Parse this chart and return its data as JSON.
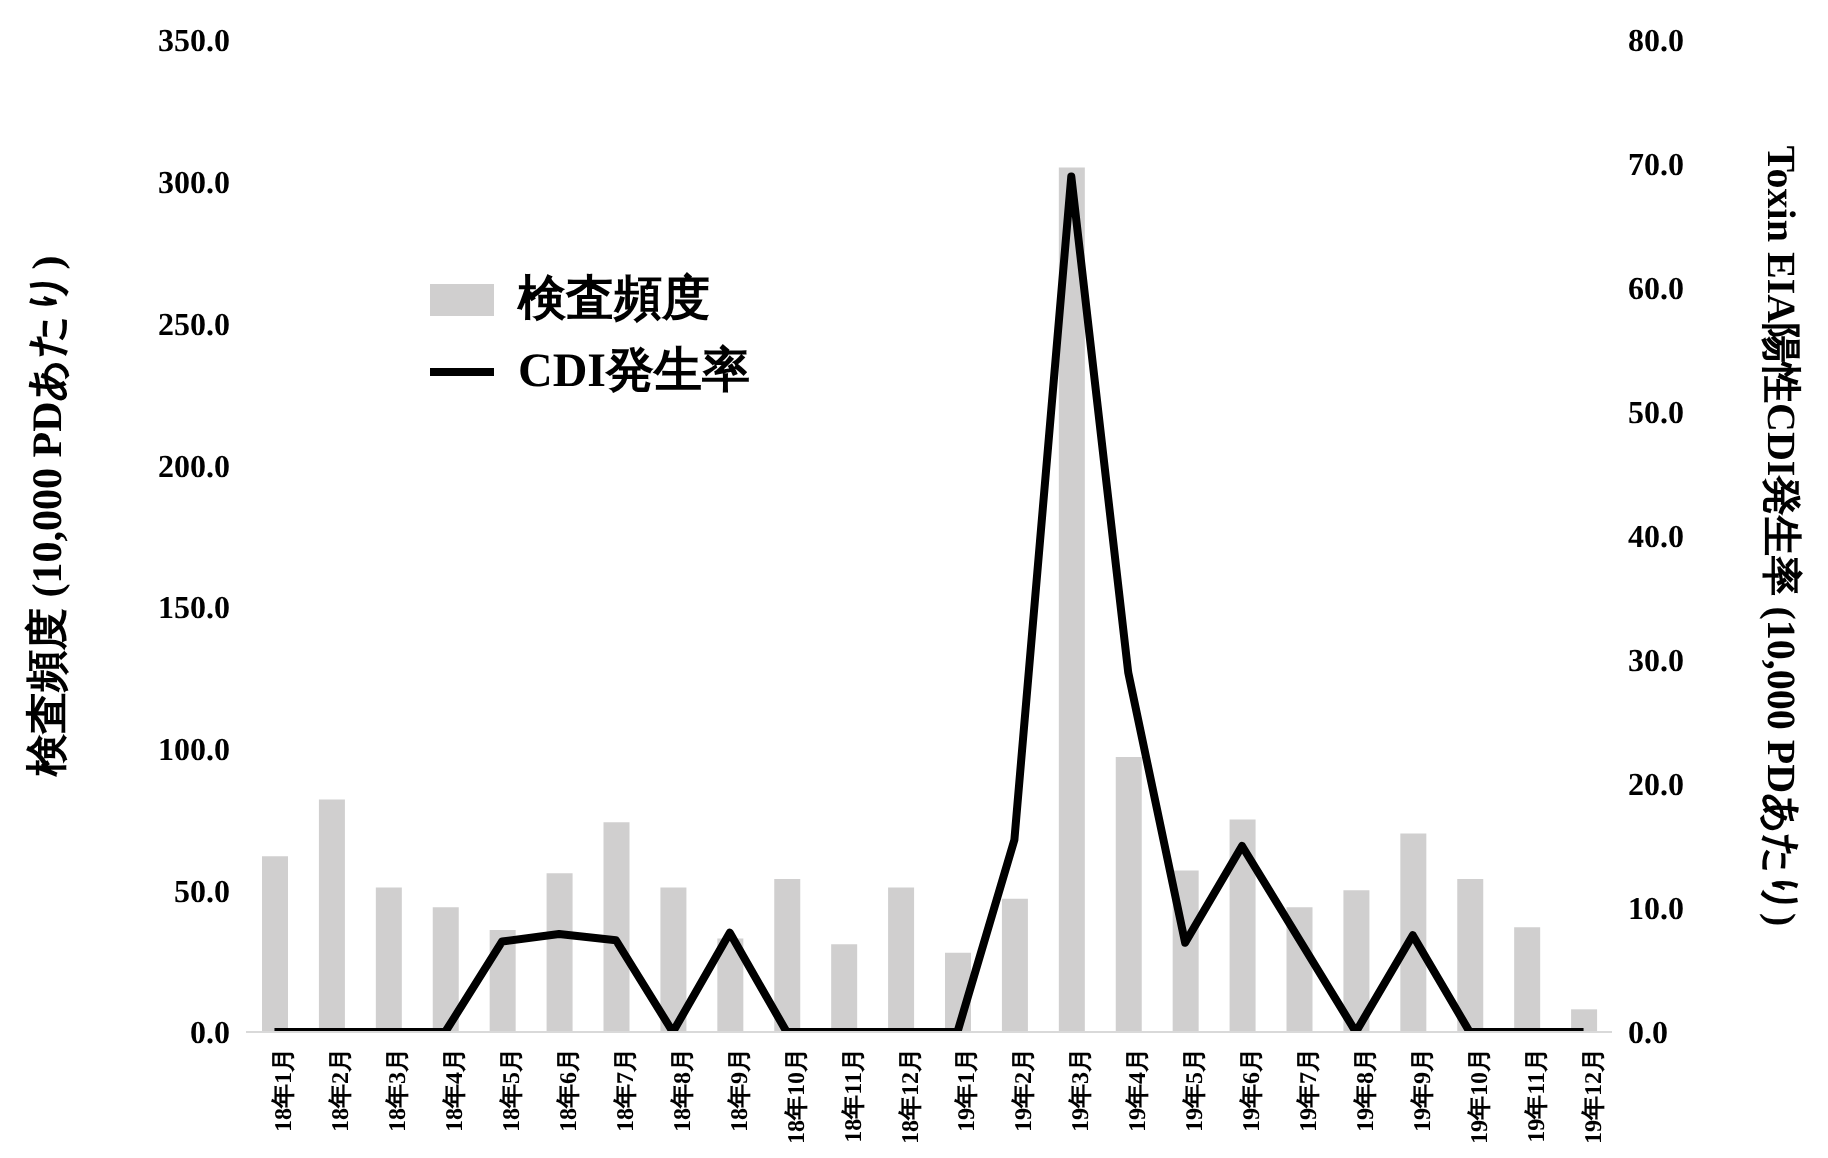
{
  "chart_data": {
    "type": "bar",
    "ylabel": "検査頻度 (10,000 PDあたり)",
    "y2label": "Toxin EIA陽性CDI発生率 (10,000 PDあたり)",
    "categories": [
      "18年1月",
      "18年2月",
      "18年3月",
      "18年4月",
      "18年5月",
      "18年6月",
      "18年7月",
      "18年8月",
      "18年9月",
      "18年10月",
      "18年11月",
      "18年12月",
      "19年1月",
      "19年2月",
      "19年3月",
      "19年4月",
      "19年5月",
      "19年6月",
      "19年7月",
      "19年8月",
      "19年9月",
      "19年10月",
      "19年11月",
      "19年12月"
    ],
    "series": [
      {
        "name": "検査頻度",
        "color": "#d0cfcf",
        "values": [
          62,
          82,
          51,
          44,
          36,
          56,
          74,
          51,
          33,
          54,
          31,
          51,
          28,
          47,
          305,
          97,
          57,
          75,
          44,
          50,
          70,
          54,
          37,
          8
        ]
      },
      {
        "name": "CDI発生率",
        "type": "line",
        "axis": "y2",
        "color": "#000000",
        "values": [
          0,
          0,
          0,
          0,
          7.3,
          7.9,
          7.4,
          0,
          8.0,
          0,
          0,
          0,
          0,
          15.5,
          69,
          29,
          7.2,
          15,
          7.5,
          0,
          7.8,
          0,
          0,
          0
        ]
      }
    ],
    "ylim": [
      0,
      350
    ],
    "yticks": [
      {
        "value": 0,
        "label": "0.0"
      },
      {
        "value": 50,
        "label": "50.0"
      },
      {
        "value": 100,
        "label": "100.0"
      },
      {
        "value": 150,
        "label": "150.0"
      },
      {
        "value": 200,
        "label": "200.0"
      },
      {
        "value": 250,
        "label": "250.0"
      },
      {
        "value": 300,
        "label": "300.0"
      },
      {
        "value": 350,
        "label": "350.0"
      }
    ],
    "y2lim": [
      0,
      80
    ],
    "y2ticks": [
      {
        "value": 0,
        "label": "0.0"
      },
      {
        "value": 10,
        "label": "10.0"
      },
      {
        "value": 20,
        "label": "20.0"
      },
      {
        "value": 30,
        "label": "30.0"
      },
      {
        "value": 40,
        "label": "40.0"
      },
      {
        "value": 50,
        "label": "50.0"
      },
      {
        "value": 60,
        "label": "60.0"
      },
      {
        "value": 70,
        "label": "70.0"
      },
      {
        "value": 80,
        "label": "80.0"
      }
    ],
    "grid": false,
    "legend": "top left",
    "marker": "none",
    "line_style": "solid"
  }
}
